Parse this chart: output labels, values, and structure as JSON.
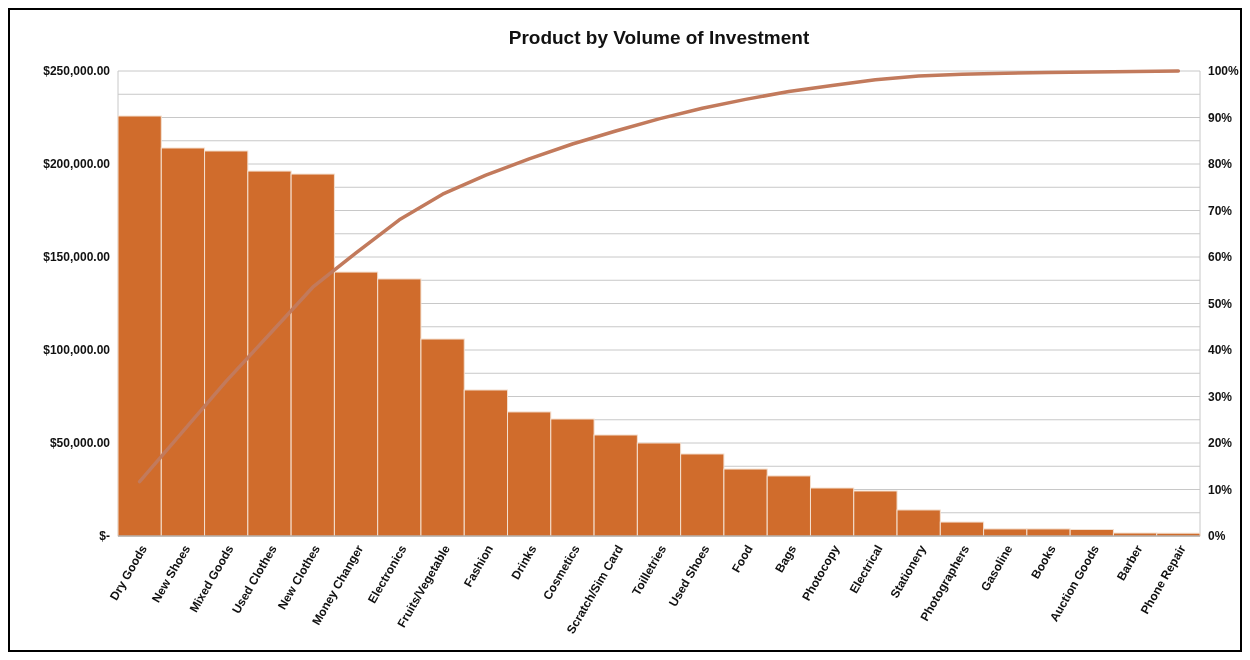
{
  "chart_data": {
    "type": "bar",
    "title": "Product by Volume of Investment",
    "categories": [
      "Dry Goods",
      "New Shoes",
      "Mixed Goods",
      "Used Clothes",
      "New Clothes",
      "Money Changer",
      "Electronics",
      "Fruits/Vegetable",
      "Fashion",
      "Drinks",
      "Cosmetics",
      "Scratch/Sim Card",
      "Toilletries",
      "Used Shoes",
      "Food",
      "Bags",
      "Photocopy",
      "Electrical",
      "Stationery",
      "Photographers",
      "Gasoline",
      "Books",
      "Auction Goods",
      "Barber",
      "Phone Repair"
    ],
    "series": [
      {
        "color": "#d06c2c",
        "values": [
          225800,
          208600,
          207000,
          196200,
          194600,
          141900,
          138200,
          105900,
          78500,
          66700,
          62900,
          54300,
          50000,
          44100,
          36000,
          32300,
          25800,
          24200,
          14000,
          7500,
          3800,
          3800,
          3500,
          1600,
          1500
        ]
      },
      {
        "type": "line",
        "axis": "y2",
        "color": "#c27a5c",
        "values": [
          11.7,
          22.5,
          33.3,
          43.4,
          53.5,
          60.9,
          68.0,
          73.5,
          77.6,
          81.1,
          84.3,
          87.1,
          89.7,
          92.0,
          93.9,
          95.6,
          96.9,
          98.1,
          98.9,
          99.3,
          99.5,
          99.7,
          99.8,
          99.9,
          100.0
        ]
      }
    ],
    "ylim": [
      0,
      250000
    ],
    "yticks": [
      {
        "value": 0,
        "label": "$-"
      },
      {
        "value": 50000,
        "label": "$50,000.00"
      },
      {
        "value": 100000,
        "label": "$100,000.00"
      },
      {
        "value": 150000,
        "label": "$150,000.00"
      },
      {
        "value": 200000,
        "label": "$200,000.00"
      },
      {
        "value": 250000,
        "label": "$250,000.00"
      }
    ],
    "y2lim": [
      0,
      100
    ],
    "y2ticks": [
      {
        "value": 0,
        "label": "0%"
      },
      {
        "value": 5,
        "label": null
      },
      {
        "value": 10,
        "label": "10%"
      },
      {
        "value": 15,
        "label": null
      },
      {
        "value": 20,
        "label": "20%"
      },
      {
        "value": 25,
        "label": null
      },
      {
        "value": 30,
        "label": "30%"
      },
      {
        "value": 35,
        "label": null
      },
      {
        "value": 40,
        "label": "40%"
      },
      {
        "value": 45,
        "label": null
      },
      {
        "value": 50,
        "label": "50%"
      },
      {
        "value": 55,
        "label": null
      },
      {
        "value": 60,
        "label": "60%"
      },
      {
        "value": 65,
        "label": null
      },
      {
        "value": 70,
        "label": "70%"
      },
      {
        "value": 75,
        "label": null
      },
      {
        "value": 80,
        "label": "80%"
      },
      {
        "value": 85,
        "label": null
      },
      {
        "value": 90,
        "label": "90%"
      },
      {
        "value": 95,
        "label": null
      },
      {
        "value": 100,
        "label": "100%"
      }
    ],
    "grid": true
  }
}
